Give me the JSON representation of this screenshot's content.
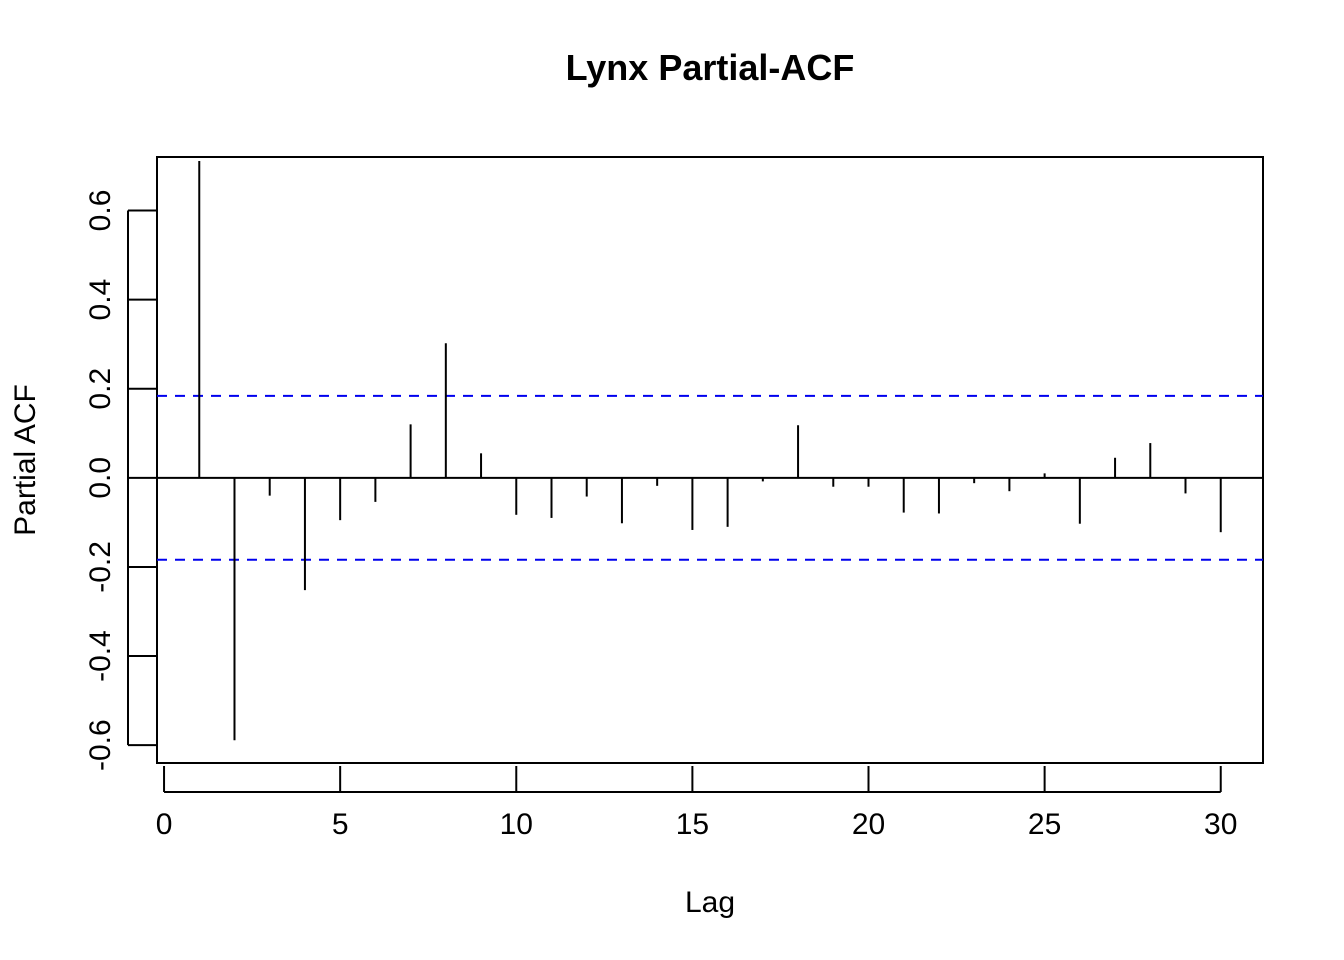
{
  "chart_data": {
    "type": "bar",
    "title": "Lynx Partial-ACF",
    "xlabel": "Lag",
    "ylabel": "Partial ACF",
    "xlim": [
      -0.2,
      31.2
    ],
    "ylim": [
      -0.64,
      0.72
    ],
    "x_ticks": [
      0,
      5,
      10,
      15,
      20,
      25,
      30
    ],
    "x_tick_labels": [
      "0",
      "5",
      "10",
      "15",
      "20",
      "25",
      "30"
    ],
    "y_ticks": [
      -0.6,
      -0.4,
      -0.2,
      0.0,
      0.2,
      0.4,
      0.6
    ],
    "y_tick_labels": [
      "-0.6",
      "-0.4",
      "-0.2",
      "0.0",
      "0.2",
      "0.4",
      "0.6"
    ],
    "confidence_bound": 0.184,
    "confidence_color": "#0000ee",
    "bar_color": "#000000",
    "series": [
      {
        "x": [
          1,
          2,
          3,
          4,
          5,
          6,
          7,
          8,
          9,
          10,
          11,
          12,
          13,
          14,
          15,
          16,
          17,
          18,
          19,
          20,
          21,
          22,
          23,
          24,
          25,
          26,
          27,
          28,
          29,
          30
        ],
        "values": [
          0.711,
          -0.589,
          -0.04,
          -0.252,
          -0.095,
          -0.054,
          0.12,
          0.302,
          0.055,
          -0.083,
          -0.09,
          -0.042,
          -0.102,
          -0.018,
          -0.117,
          -0.11,
          -0.008,
          0.118,
          -0.02,
          -0.02,
          -0.078,
          -0.08,
          -0.012,
          -0.03,
          0.01,
          -0.103,
          0.045,
          0.078,
          -0.035,
          -0.122
        ]
      }
    ],
    "grid": false
  }
}
